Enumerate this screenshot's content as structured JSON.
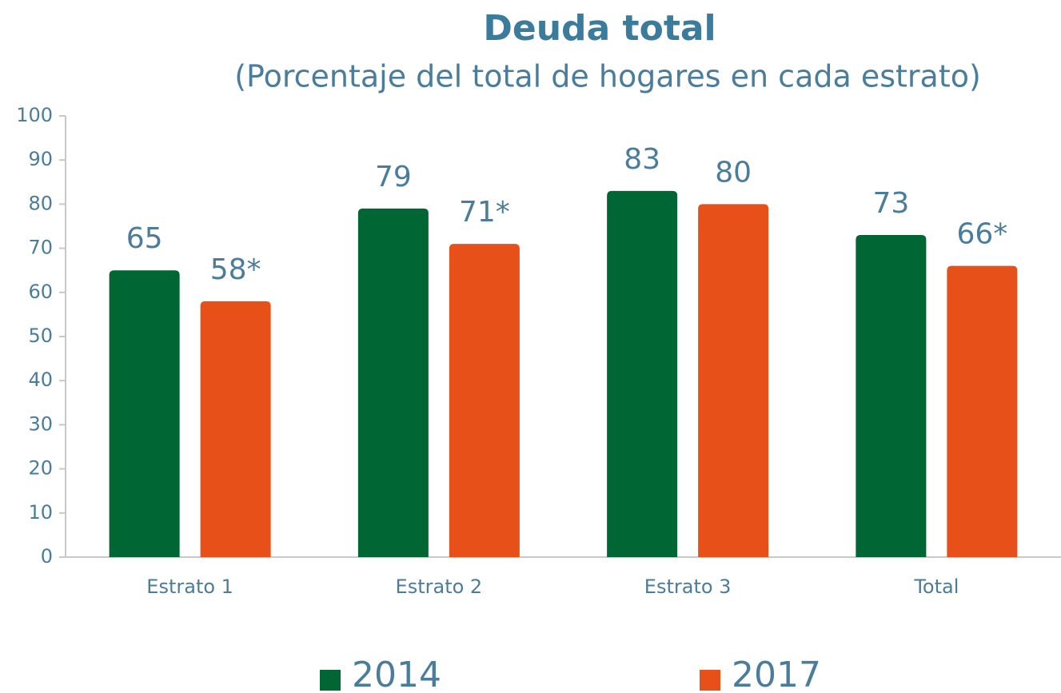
{
  "chart_data": {
    "type": "bar",
    "title": "Deuda total",
    "subtitle": "(Porcentaje del total de hogares en cada estrato)",
    "categories": [
      "Estrato 1",
      "Estrato 2",
      "Estrato 3",
      "Total"
    ],
    "series": [
      {
        "name": "2014",
        "color": "#006633",
        "values": [
          65,
          79,
          83,
          73
        ]
      },
      {
        "name": "2017",
        "color": "#e8501a",
        "values": [
          58,
          71,
          80,
          66
        ],
        "value_labels": [
          "58*",
          "71*",
          "80",
          "66*"
        ]
      }
    ],
    "ylim": [
      0,
      100
    ],
    "yticks": [
      0,
      10,
      20,
      30,
      40,
      50,
      60,
      70,
      80,
      90,
      100
    ],
    "grid": false,
    "legend": "bottom"
  }
}
